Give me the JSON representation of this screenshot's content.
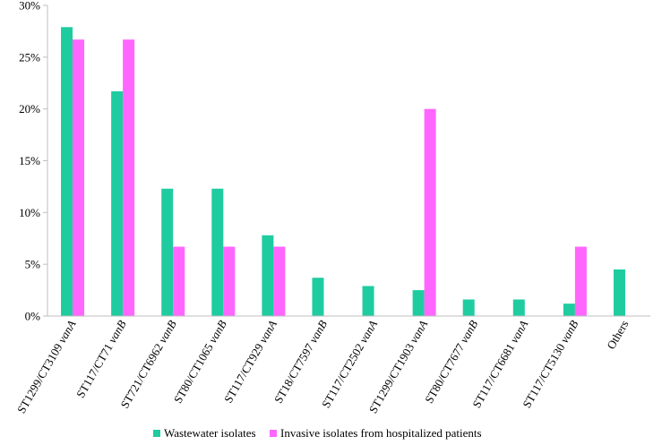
{
  "chart_data": {
    "type": "bar",
    "categories": [
      {
        "base": "ST1299/CT3109",
        "gene": "vanA"
      },
      {
        "base": "ST117/CT71",
        "gene": "vanB"
      },
      {
        "base": "ST721/CT6962",
        "gene": "vanB"
      },
      {
        "base": "ST80/CT1065",
        "gene": "vanB"
      },
      {
        "base": "ST117/CT929",
        "gene": "vanA"
      },
      {
        "base": "ST18/CT7597",
        "gene": "vanB"
      },
      {
        "base": "ST117/CT2502",
        "gene": "vanA"
      },
      {
        "base": "ST1299/CT1903",
        "gene": "vanA"
      },
      {
        "base": "ST80/CT7677",
        "gene": "vanB"
      },
      {
        "base": "ST117/CT6681",
        "gene": "vanA"
      },
      {
        "base": "ST117/CT5130",
        "gene": "vanB"
      },
      {
        "base": "Others",
        "gene": ""
      }
    ],
    "series": [
      {
        "name": "Wastewater isolates",
        "color": "#1fcca0",
        "values": [
          27.9,
          21.7,
          12.3,
          12.3,
          7.8,
          3.7,
          2.9,
          2.5,
          1.6,
          1.6,
          1.2,
          4.5
        ]
      },
      {
        "name": "Invasive isolates from hospitalized patients",
        "color": "#ff66ff",
        "values": [
          26.7,
          26.7,
          6.7,
          6.7,
          6.7,
          0,
          0,
          20.0,
          0,
          0,
          6.7,
          0
        ]
      }
    ],
    "ylim": [
      0,
      30
    ],
    "yticks": [
      0,
      5,
      10,
      15,
      20,
      25,
      30
    ],
    "ytick_labels": [
      "0%",
      "5%",
      "10%",
      "15%",
      "20%",
      "25%",
      "30%"
    ],
    "grid": false,
    "legend_position": "bottom"
  }
}
